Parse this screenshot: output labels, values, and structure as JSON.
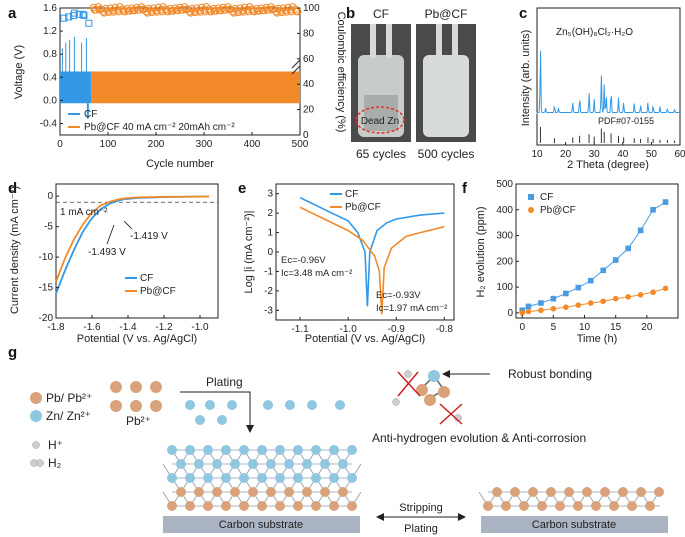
{
  "figure": {
    "panel_labels": [
      "a",
      "b",
      "c",
      "d",
      "e",
      "f",
      "g"
    ],
    "colors": {
      "cf": "#3399e6",
      "pb": "#f28a2a",
      "cf_marker": "#4a9be0",
      "red": "#cc1f1f",
      "zn": "#8fc6e0",
      "pb_atom": "#d9a27a",
      "substrate": "#aab4c2"
    }
  },
  "panel_a": {
    "chart_data": {
      "type": "line",
      "xlabel": "Cycle number",
      "ylabel": "Voltage (V)",
      "y2label": "Coulombic efficiency (%)",
      "xlim": [
        0,
        500
      ],
      "ylim": [
        -0.6,
        1.6
      ],
      "y2lim": [
        0,
        100
      ],
      "xticks": [
        "0",
        "100",
        "200",
        "300",
        "400",
        "500"
      ],
      "yticks": [
        "-0.4",
        "0.0",
        "0.4",
        "0.8",
        "1.2",
        "1.6"
      ],
      "y2ticks": [
        "0",
        "20",
        "40",
        "60",
        "80",
        "100"
      ],
      "y2ticks_right": [
        "0",
        "20",
        "40",
        "60",
        "80",
        "100"
      ],
      "series": [
        {
          "name": "CF",
          "voltage_band": [
            -0.05,
            0.5
          ],
          "cycles": [
            0,
            65
          ],
          "ce": [
            92,
            94,
            95,
            96,
            95,
            88
          ]
        },
        {
          "name": "Pb@CF",
          "voltage_band": [
            -0.05,
            0.5
          ],
          "cycles": [
            65,
            500
          ],
          "ce_mean": 99.5
        }
      ],
      "legend": [
        "CF",
        "Pb@CF  40  mA cm⁻²  20mAh cm⁻²"
      ]
    }
  },
  "panel_b": {
    "labels": [
      "CF",
      "Pb@CF"
    ],
    "captions": [
      "65 cycles",
      "500 cycles"
    ],
    "annotation": "Dead Zn"
  },
  "panel_c": {
    "chart_data": {
      "type": "bar",
      "xlabel": "2 Theta (degree)",
      "ylabel": "Intensity (arb. units)",
      "xlim": [
        10,
        60
      ],
      "xticks": [
        "10",
        "20",
        "30",
        "40",
        "50",
        "60"
      ],
      "compound": "Zn₅(OH)₈Cl₂·H₂O",
      "pdf": "PDF#07-0155",
      "peaks_x": [
        11.2,
        13.0,
        16.1,
        17.5,
        22.5,
        24.9,
        28.2,
        30.0,
        32.5,
        33.5,
        34.2,
        35.9,
        38.5,
        40.3,
        44.0,
        46.2,
        48.8,
        50.6,
        53.0,
        55.6,
        58.1
      ],
      "peaks_y": [
        0.9,
        0.06,
        0.1,
        0.06,
        0.13,
        0.22,
        0.28,
        0.18,
        0.5,
        0.38,
        0.22,
        0.3,
        0.2,
        0.14,
        0.12,
        0.1,
        0.14,
        0.1,
        0.08,
        0.06,
        0.05
      ],
      "ref_x": [
        11.2,
        16.1,
        22.5,
        24.9,
        28.2,
        30.0,
        32.5,
        33.5,
        35.9,
        38.5,
        40.3,
        44.0,
        46.2,
        48.8,
        50.6,
        53.0,
        55.6,
        58.1
      ],
      "ref_h": [
        1.0,
        0.3,
        0.35,
        0.45,
        0.55,
        0.4,
        0.9,
        0.7,
        0.6,
        0.45,
        0.35,
        0.3,
        0.25,
        0.35,
        0.25,
        0.2,
        0.18,
        0.15
      ]
    }
  },
  "panel_d": {
    "chart_data": {
      "type": "line",
      "xlabel": "Potential (V vs. Ag/AgCl)",
      "ylabel": "Current density (mA cm⁻²)",
      "xlim": [
        -1.8,
        -0.9
      ],
      "ylim": [
        -20,
        2
      ],
      "xticks": [
        "-1.8",
        "-1.6",
        "-1.4",
        "-1.2",
        "-1.0"
      ],
      "yticks": [
        "-20",
        "-15",
        "-10",
        "-5",
        "0"
      ],
      "ref_line": "1 mA cm⁻²",
      "annotations": [
        "-1.419 V",
        "-1.493 V"
      ],
      "series": [
        {
          "name": "CF",
          "x": [
            -1.8,
            -1.75,
            -1.7,
            -1.65,
            -1.6,
            -1.55,
            -1.5,
            -1.45,
            -1.42,
            -1.35,
            -1.2,
            -0.95
          ],
          "y": [
            -16,
            -12.2,
            -8.8,
            -5.8,
            -3.6,
            -2.1,
            -1.2,
            -0.7,
            -0.5,
            -0.3,
            -0.15,
            -0.05
          ]
        },
        {
          "name": "Pb@CF",
          "x": [
            -1.8,
            -1.75,
            -1.7,
            -1.65,
            -1.6,
            -1.55,
            -1.5,
            -1.45,
            -1.4,
            -1.35,
            -1.2,
            -0.95
          ],
          "y": [
            -14,
            -10.2,
            -7.1,
            -4.6,
            -2.7,
            -1.5,
            -0.9,
            -0.5,
            -0.3,
            -0.2,
            -0.1,
            -0.05
          ]
        }
      ]
    }
  },
  "panel_e": {
    "chart_data": {
      "type": "line",
      "xlabel": "Potential (V vs. Ag/AgCl)",
      "ylabel": "Log |i (mA cm⁻²)|",
      "xlim": [
        -1.15,
        -0.78
      ],
      "ylim": [
        -3.5,
        3.5
      ],
      "xticks": [
        "-1.1",
        "-1.0",
        "-0.9",
        "-0.8"
      ],
      "yticks": [
        "-3",
        "-2",
        "-1",
        "0",
        "1",
        "2",
        "3"
      ],
      "series": [
        {
          "name": "CF",
          "x": [
            -1.1,
            -1.05,
            -1.0,
            -0.98,
            -0.965,
            -0.96,
            -0.955,
            -0.94,
            -0.92,
            -0.9,
            -0.85,
            -0.8
          ],
          "y": [
            2.8,
            2.2,
            1.6,
            1.0,
            0.0,
            -2.8,
            0.0,
            1.1,
            1.5,
            1.7,
            1.9,
            2.0
          ]
        },
        {
          "name": "Pb@CF",
          "x": [
            -1.1,
            -1.05,
            -1.0,
            -0.97,
            -0.945,
            -0.935,
            -0.93,
            -0.925,
            -0.91,
            -0.88,
            -0.85,
            -0.8
          ],
          "y": [
            2.3,
            1.7,
            1.1,
            0.6,
            -0.2,
            -1.0,
            -3.2,
            -0.8,
            0.2,
            0.8,
            1.0,
            1.3
          ]
        }
      ],
      "annotations": {
        "cf_ec": "Eᴄ=-0.96V",
        "cf_ic": "Iᴄ=3.48 mA cm⁻²",
        "pb_ec": "Eᴄ=-0.93V",
        "pb_ic": "Iᴄ=1.97 mA cm⁻²"
      }
    }
  },
  "panel_f": {
    "chart_data": {
      "type": "line",
      "xlabel": "Time (h)",
      "ylabel": "H₂ evolution (ppm)",
      "xlim": [
        -1,
        25
      ],
      "ylim": [
        -20,
        500
      ],
      "xticks": [
        "0",
        "5",
        "10",
        "15",
        "20"
      ],
      "yticks": [
        "0",
        "100",
        "200",
        "300",
        "400",
        "500"
      ],
      "series": [
        {
          "name": "CF",
          "x": [
            0,
            1,
            3,
            5,
            7,
            9,
            11,
            13,
            15,
            17,
            19,
            21,
            23
          ],
          "y": [
            10,
            25,
            38,
            55,
            75,
            98,
            125,
            165,
            205,
            250,
            320,
            400,
            430
          ]
        },
        {
          "name": "Pb@CF",
          "x": [
            0,
            1,
            3,
            5,
            7,
            9,
            11,
            13,
            15,
            17,
            19,
            21,
            23
          ],
          "y": [
            0,
            5,
            10,
            16,
            22,
            30,
            38,
            45,
            55,
            62,
            70,
            80,
            95
          ]
        }
      ]
    }
  },
  "panel_g": {
    "legend": [
      {
        "label": "Pb/ Pb²⁺"
      },
      {
        "label": "Zn/ Zn²⁺"
      },
      {
        "label": "H⁺"
      },
      {
        "label": "H₂"
      }
    ],
    "pb_ion": "Pb²⁺",
    "plating": "Plating",
    "stripping": "Stripping",
    "plating2": "Plating",
    "substrate": "Carbon substrate",
    "robust": "Robust bonding",
    "anti": "Anti-hydrogen evolution & Anti-corrosion"
  }
}
